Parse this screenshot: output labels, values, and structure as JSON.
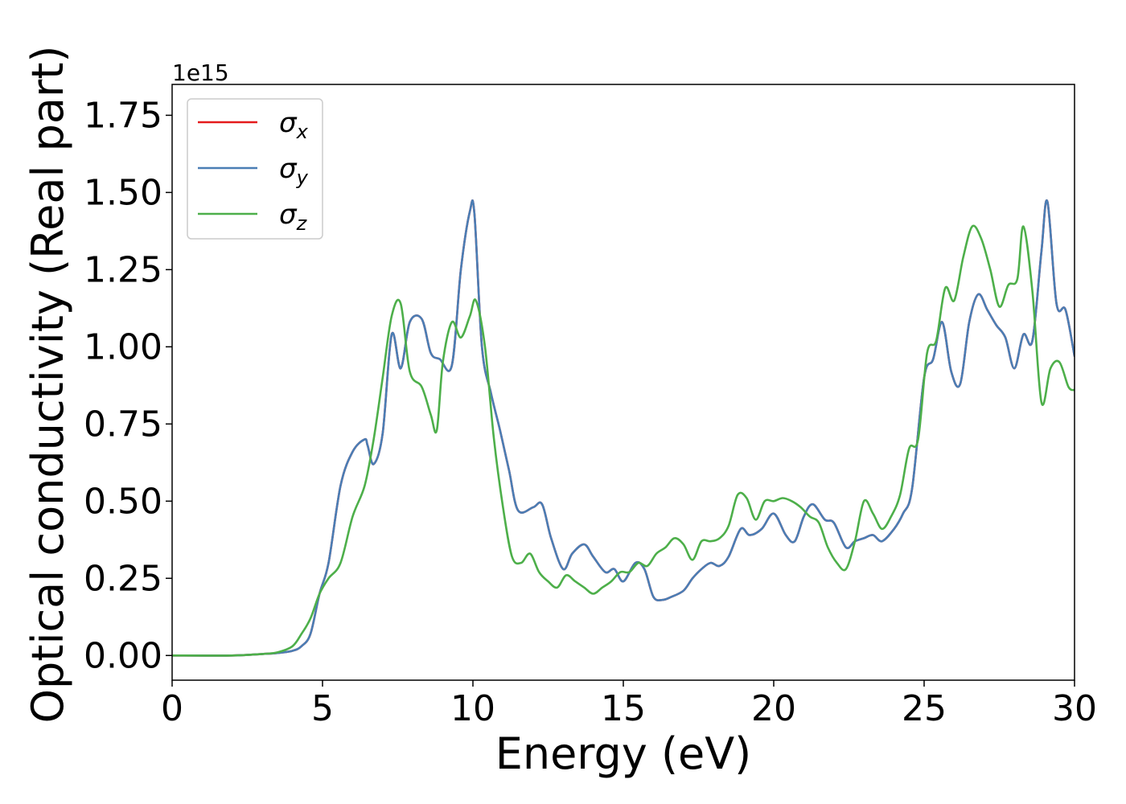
{
  "chart_data": {
    "type": "line",
    "xlabel": "Energy (eV)",
    "ylabel": "Optical conductivity (Real part)",
    "y_offset_label": "1e15",
    "xlim": [
      0,
      30
    ],
    "ylim": [
      -0.08,
      1.85
    ],
    "x_ticks": [
      "0",
      "5",
      "10",
      "15",
      "20",
      "25",
      "30"
    ],
    "y_ticks": [
      "0.00",
      "0.25",
      "0.50",
      "0.75",
      "1.00",
      "1.25",
      "1.50",
      "1.75"
    ],
    "grid": false,
    "legend_position": "top-left",
    "series": [
      {
        "name": "σx",
        "legend_symbol": "σ",
        "legend_subscript": "x",
        "color": "#e41a1c",
        "x": [
          0,
          2,
          3,
          3.5,
          4,
          4.3,
          4.6,
          4.9,
          5.2,
          5.6,
          6.0,
          6.4,
          6.5,
          6.7,
          7.0,
          7.3,
          7.6,
          7.9,
          8.3,
          8.6,
          8.9,
          9.3,
          9.6,
          9.9,
          10.05,
          10.3,
          10.6,
          10.9,
          11.2,
          11.5,
          12.0,
          12.3,
          12.6,
          13.0,
          13.3,
          13.7,
          14.0,
          14.4,
          14.7,
          15.0,
          15.4,
          15.7,
          16.0,
          16.3,
          16.6,
          17.0,
          17.3,
          17.6,
          17.9,
          18.2,
          18.5,
          18.9,
          19.2,
          19.6,
          20.0,
          20.4,
          20.7,
          21.0,
          21.3,
          21.7,
          22.0,
          22.4,
          22.7,
          23.0,
          23.3,
          23.6,
          24.0,
          24.3,
          24.6,
          25.0,
          25.3,
          25.6,
          25.9,
          26.2,
          26.5,
          26.8,
          27.1,
          27.4,
          27.7,
          28.0,
          28.3,
          28.6,
          28.9,
          29.1,
          29.4,
          29.7,
          30.0
        ],
        "y": [
          0.0,
          0.0,
          0.005,
          0.008,
          0.015,
          0.03,
          0.07,
          0.2,
          0.3,
          0.55,
          0.66,
          0.7,
          0.68,
          0.62,
          0.72,
          1.04,
          0.93,
          1.08,
          1.09,
          0.98,
          0.96,
          0.94,
          1.25,
          1.44,
          1.43,
          1.0,
          0.85,
          0.73,
          0.6,
          0.47,
          0.48,
          0.49,
          0.38,
          0.28,
          0.33,
          0.36,
          0.32,
          0.27,
          0.28,
          0.24,
          0.3,
          0.28,
          0.19,
          0.18,
          0.19,
          0.21,
          0.25,
          0.28,
          0.3,
          0.29,
          0.32,
          0.41,
          0.39,
          0.41,
          0.46,
          0.39,
          0.37,
          0.45,
          0.49,
          0.44,
          0.43,
          0.35,
          0.37,
          0.38,
          0.39,
          0.37,
          0.41,
          0.46,
          0.54,
          0.9,
          0.96,
          1.08,
          0.92,
          0.88,
          1.08,
          1.17,
          1.12,
          1.07,
          1.03,
          0.93,
          1.04,
          1.02,
          1.31,
          1.47,
          1.14,
          1.12,
          0.97
        ]
      },
      {
        "name": "σy",
        "legend_symbol": "σ",
        "legend_subscript": "y",
        "color": "#4a7eb5",
        "x": [
          0,
          2,
          3,
          3.5,
          4,
          4.3,
          4.6,
          4.9,
          5.2,
          5.6,
          6.0,
          6.4,
          6.5,
          6.7,
          7.0,
          7.3,
          7.6,
          7.9,
          8.3,
          8.6,
          8.9,
          9.3,
          9.6,
          9.9,
          10.05,
          10.3,
          10.6,
          10.9,
          11.2,
          11.5,
          12.0,
          12.3,
          12.6,
          13.0,
          13.3,
          13.7,
          14.0,
          14.4,
          14.7,
          15.0,
          15.4,
          15.7,
          16.0,
          16.3,
          16.6,
          17.0,
          17.3,
          17.6,
          17.9,
          18.2,
          18.5,
          18.9,
          19.2,
          19.6,
          20.0,
          20.4,
          20.7,
          21.0,
          21.3,
          21.7,
          22.0,
          22.4,
          22.7,
          23.0,
          23.3,
          23.6,
          24.0,
          24.3,
          24.6,
          25.0,
          25.3,
          25.6,
          25.9,
          26.2,
          26.5,
          26.8,
          27.1,
          27.4,
          27.7,
          28.0,
          28.3,
          28.6,
          28.9,
          29.1,
          29.4,
          29.7,
          30.0
        ],
        "y": [
          0.0,
          0.0,
          0.005,
          0.008,
          0.015,
          0.03,
          0.07,
          0.2,
          0.3,
          0.55,
          0.66,
          0.7,
          0.68,
          0.62,
          0.72,
          1.04,
          0.93,
          1.08,
          1.09,
          0.98,
          0.96,
          0.94,
          1.25,
          1.44,
          1.43,
          1.0,
          0.85,
          0.73,
          0.6,
          0.47,
          0.48,
          0.49,
          0.38,
          0.28,
          0.33,
          0.36,
          0.32,
          0.27,
          0.28,
          0.24,
          0.3,
          0.28,
          0.19,
          0.18,
          0.19,
          0.21,
          0.25,
          0.28,
          0.3,
          0.29,
          0.32,
          0.41,
          0.39,
          0.41,
          0.46,
          0.39,
          0.37,
          0.45,
          0.49,
          0.44,
          0.43,
          0.35,
          0.37,
          0.38,
          0.39,
          0.37,
          0.41,
          0.46,
          0.54,
          0.9,
          0.96,
          1.08,
          0.92,
          0.88,
          1.08,
          1.17,
          1.12,
          1.07,
          1.03,
          0.93,
          1.04,
          1.02,
          1.31,
          1.47,
          1.14,
          1.12,
          0.97
        ]
      },
      {
        "name": "σz",
        "legend_symbol": "σ",
        "legend_subscript": "z",
        "color": "#4daf4a",
        "x": [
          0,
          2,
          3,
          3.5,
          4,
          4.3,
          4.6,
          4.9,
          5.2,
          5.6,
          6.0,
          6.4,
          6.7,
          7.0,
          7.3,
          7.6,
          7.9,
          8.3,
          8.6,
          8.8,
          9.0,
          9.3,
          9.6,
          9.9,
          10.1,
          10.4,
          10.7,
          11.0,
          11.3,
          11.6,
          11.9,
          12.2,
          12.5,
          12.8,
          13.1,
          13.4,
          13.7,
          14.0,
          14.3,
          14.6,
          14.9,
          15.2,
          15.5,
          15.8,
          16.1,
          16.4,
          16.7,
          17.0,
          17.3,
          17.6,
          17.9,
          18.2,
          18.5,
          18.8,
          19.1,
          19.4,
          19.7,
          20.0,
          20.3,
          20.6,
          20.9,
          21.2,
          21.5,
          21.8,
          22.1,
          22.4,
          22.7,
          23.0,
          23.3,
          23.6,
          23.9,
          24.2,
          24.5,
          24.8,
          25.1,
          25.4,
          25.7,
          26.0,
          26.3,
          26.6,
          26.9,
          27.2,
          27.5,
          27.8,
          28.1,
          28.3,
          28.6,
          28.9,
          29.2,
          29.5,
          29.8,
          30.0
        ],
        "y": [
          0.0,
          0.0,
          0.005,
          0.01,
          0.03,
          0.07,
          0.12,
          0.2,
          0.25,
          0.3,
          0.45,
          0.55,
          0.7,
          0.9,
          1.1,
          1.14,
          0.92,
          0.87,
          0.78,
          0.73,
          0.95,
          1.08,
          1.03,
          1.1,
          1.15,
          1.0,
          0.7,
          0.48,
          0.32,
          0.3,
          0.33,
          0.27,
          0.24,
          0.22,
          0.26,
          0.24,
          0.22,
          0.2,
          0.22,
          0.24,
          0.27,
          0.27,
          0.3,
          0.29,
          0.33,
          0.35,
          0.38,
          0.36,
          0.31,
          0.37,
          0.37,
          0.38,
          0.42,
          0.52,
          0.51,
          0.44,
          0.5,
          0.5,
          0.51,
          0.5,
          0.48,
          0.45,
          0.43,
          0.35,
          0.3,
          0.28,
          0.37,
          0.5,
          0.46,
          0.41,
          0.45,
          0.52,
          0.67,
          0.7,
          0.98,
          1.02,
          1.19,
          1.15,
          1.29,
          1.39,
          1.35,
          1.25,
          1.13,
          1.2,
          1.22,
          1.39,
          1.18,
          0.82,
          0.93,
          0.95,
          0.87,
          0.86
        ]
      }
    ]
  }
}
